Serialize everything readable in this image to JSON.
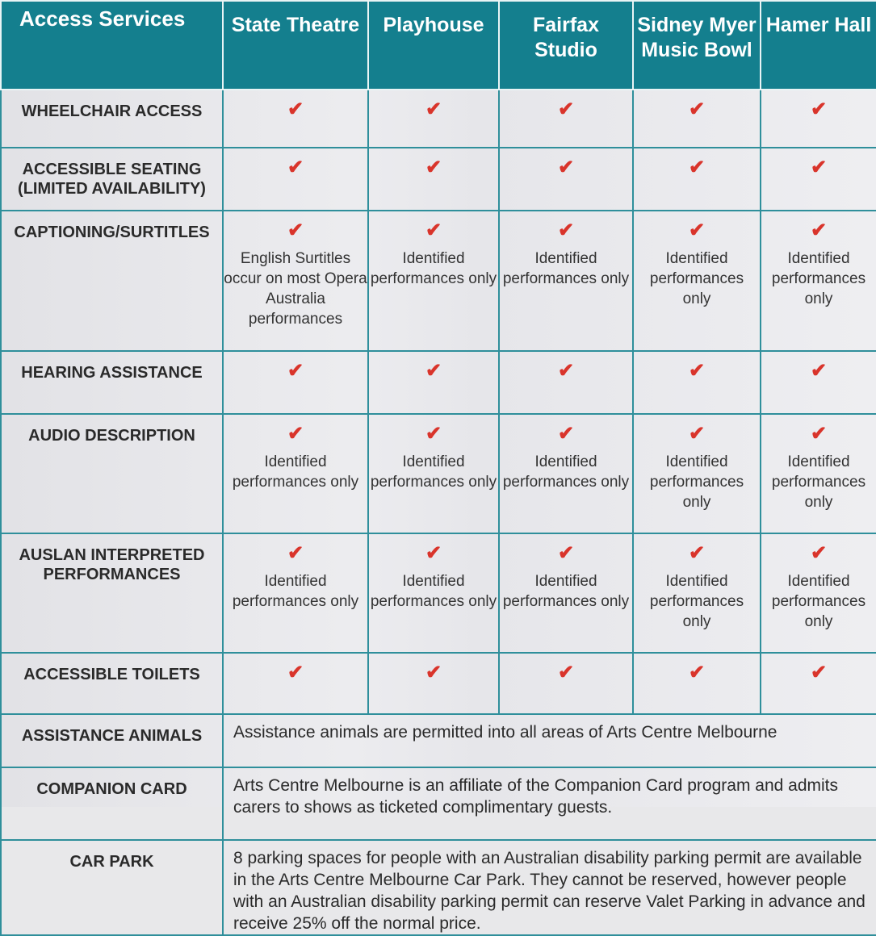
{
  "header": {
    "corner": "Access Services",
    "venues": [
      "State Theatre",
      "Playhouse",
      "Fairfax\nStudio",
      "Sidney Myer\nMusic Bowl",
      "Hamer Hall"
    ]
  },
  "tick": "✔",
  "rows": {
    "wheelchair": {
      "label": "WHEELCHAIR ACCESS"
    },
    "seating": {
      "label": "ACCESSIBLE SEATING\n(LIMITED AVAILABILITY)"
    },
    "captioning": {
      "label": "CAPTIONING/SURTITLES",
      "notes": [
        "English Surtitles occur on most Opera Australia performances",
        "Identified performances only",
        "Identified performances only",
        "Identified performances only",
        "Identified performances only"
      ]
    },
    "hearing": {
      "label": "HEARING ASSISTANCE"
    },
    "audio": {
      "label": "AUDIO DESCRIPTION",
      "notes": [
        "Identified performances only",
        "Identified performances only",
        "Identified performances only",
        "Identified performances only",
        "Identified performances only"
      ]
    },
    "auslan": {
      "label": "AUSLAN INTERPRETED PERFORMANCES",
      "notes": [
        "Identified performances only",
        "Identified performances only",
        "Identified performances only",
        "Identified performances only",
        "Identified performances only"
      ]
    },
    "toilets": {
      "label": "ACCESSIBLE TOILETS"
    },
    "animals": {
      "label": "ASSISTANCE ANIMALS",
      "text": "Assistance animals are permitted into all areas of Arts Centre Melbourne"
    },
    "companion": {
      "label": "COMPANION CARD",
      "text": "Arts Centre Melbourne is an affiliate of the Companion Card program and admits carers to shows as ticketed complimentary guests."
    },
    "carpark": {
      "label": "CAR PARK",
      "text": "8 parking spaces for people with an Australian disability parking permit are available in the Arts Centre Melbourne Car Park. They cannot be reserved, however people with an Australian disability parking permit can reserve Valet Parking in advance and receive 25% off the normal price."
    }
  }
}
